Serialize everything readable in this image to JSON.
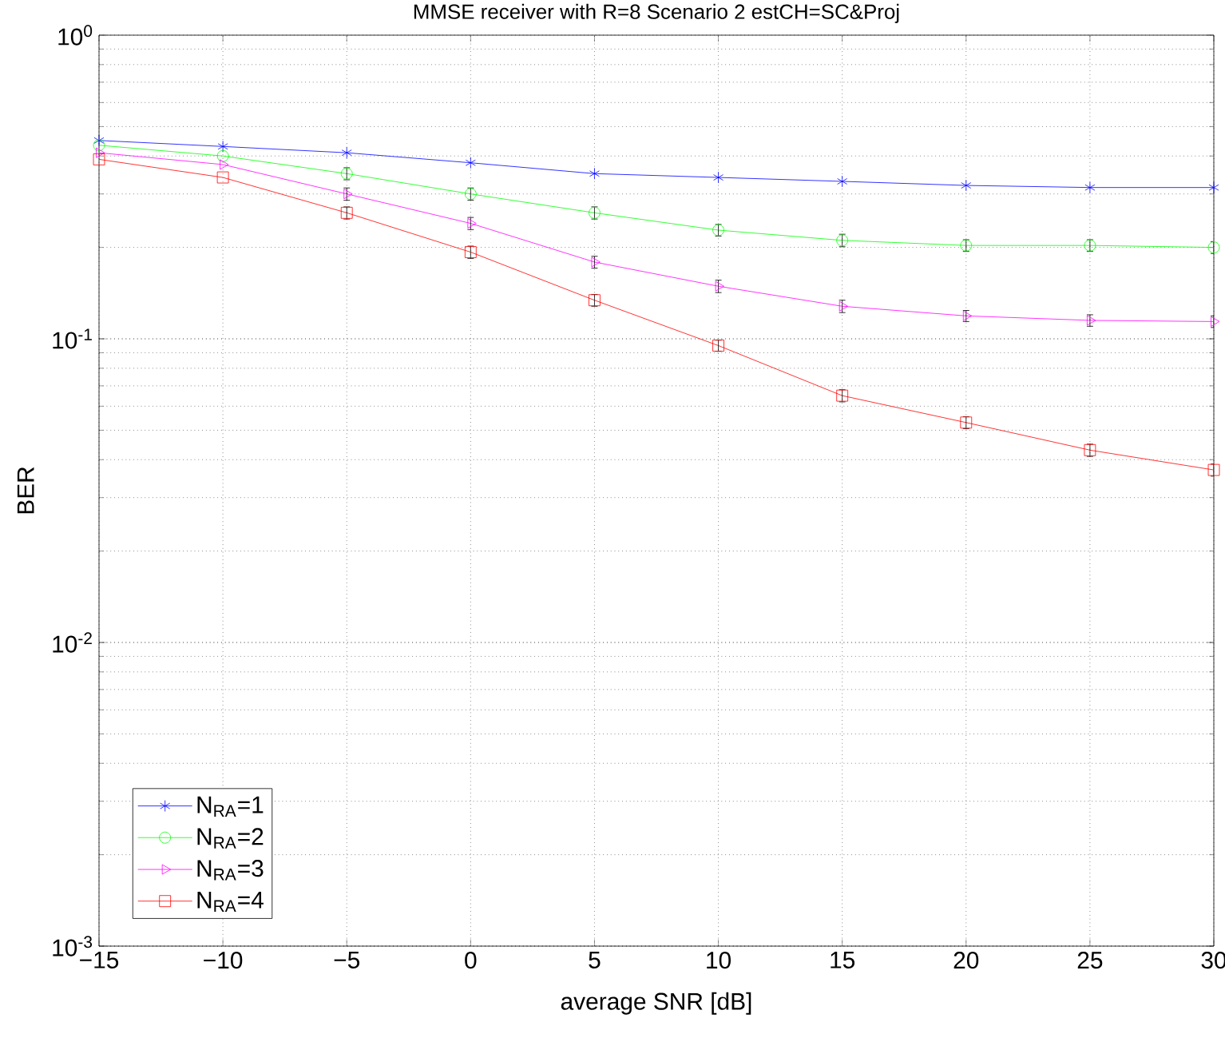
{
  "chart_data": {
    "type": "line",
    "title": "MMSE  receiver with R=8  Scenario 2  estCH=SC&Proj",
    "xlabel": "average SNR [dB]",
    "ylabel": "BER",
    "x": [
      -15,
      -10,
      -5,
      0,
      5,
      10,
      15,
      20,
      25,
      30
    ],
    "series": [
      {
        "name": "N$_{RA}$=1",
        "color": "#0000ff",
        "marker": "cross",
        "values": [
          0.45,
          0.43,
          0.41,
          0.38,
          0.35,
          0.34,
          0.33,
          0.32,
          0.315,
          0.315
        ]
      },
      {
        "name": "N$_{RA}$=2",
        "color": "#00ff00",
        "marker": "circle",
        "values": [
          0.434,
          0.4,
          0.35,
          0.3,
          0.26,
          0.228,
          0.211,
          0.203,
          0.203,
          0.2
        ],
        "errors": [
          null,
          null,
          0.016,
          0.014,
          0.012,
          0.01,
          0.01,
          0.009,
          0.009,
          0.009
        ]
      },
      {
        "name": "N$_{RA}$=3",
        "color": "#ff00ff",
        "marker": "triangle",
        "values": [
          0.41,
          0.375,
          0.3,
          0.24,
          0.179,
          0.149,
          0.128,
          0.119,
          0.115,
          0.114
        ],
        "errors": [
          null,
          null,
          0.014,
          0.011,
          0.008,
          0.007,
          0.006,
          0.005,
          0.005,
          0.005
        ]
      },
      {
        "name": "N$_{RA}$=4",
        "color": "#ff0000",
        "marker": "square",
        "values": [
          0.39,
          0.34,
          0.26,
          0.193,
          0.134,
          0.095,
          0.065,
          0.053,
          0.043,
          0.037
        ],
        "errors": [
          null,
          null,
          0.012,
          0.009,
          0.006,
          0.004,
          0.003,
          0.0024,
          0.002,
          0.0017
        ]
      }
    ],
    "log": "y",
    "xlim": [
      -15,
      30
    ],
    "ylim": [
      0.001,
      1
    ],
    "xticks": [
      {
        "value": -15,
        "label": "−15"
      },
      {
        "value": -10,
        "label": "−10"
      },
      {
        "value": -5,
        "label": "−5"
      },
      0,
      5,
      10,
      15,
      20,
      25,
      30
    ],
    "yticks": [
      {
        "value": 0.001,
        "label": "10$^{-3}$"
      },
      {
        "value": 0.01,
        "label": "10$^{-2}$"
      },
      {
        "value": 0.1,
        "label": "10$^{-1}$"
      },
      {
        "value": 1,
        "label": "10$^{0}$"
      }
    ],
    "grid": true,
    "legend": "bottom left",
    "line_style": "solid"
  }
}
